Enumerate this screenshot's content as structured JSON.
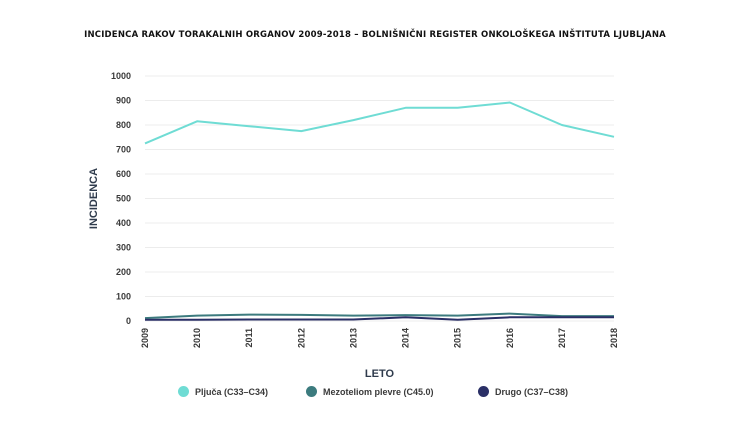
{
  "chart_data": {
    "type": "line",
    "title": "INCIDENCA RAKOV TORAKALNIH ORGANOV 2009-2018 – BOLNIŠNIČNI REGISTER ONKOLOŠKEGA INŠTITUTA LJUBLJANA",
    "xlabel": "LETO",
    "ylabel": "INCIDENCA",
    "x": [
      "2009",
      "2010",
      "2011",
      "2012",
      "2013",
      "2014",
      "2015",
      "2016",
      "2017",
      "2018"
    ],
    "ylim": [
      0,
      1000
    ],
    "yticks": [
      0,
      100,
      200,
      300,
      400,
      500,
      600,
      700,
      800,
      900,
      1000
    ],
    "grid": true,
    "legend_position": "bottom",
    "series": [
      {
        "name": "Pljuča (C33–C34)",
        "color": "#6fdcd4",
        "values": [
          725,
          815,
          795,
          775,
          820,
          870,
          870,
          892,
          800,
          752
        ]
      },
      {
        "name": "Mezoteliom plevre (C45.0)",
        "color": "#3c7b7e",
        "values": [
          12,
          22,
          26,
          25,
          22,
          24,
          22,
          30,
          20,
          20
        ]
      },
      {
        "name": "Drugo (C37–C38)",
        "color": "#2a2f66",
        "values": [
          5,
          5,
          6,
          6,
          6,
          15,
          5,
          15,
          15,
          15
        ]
      }
    ]
  }
}
